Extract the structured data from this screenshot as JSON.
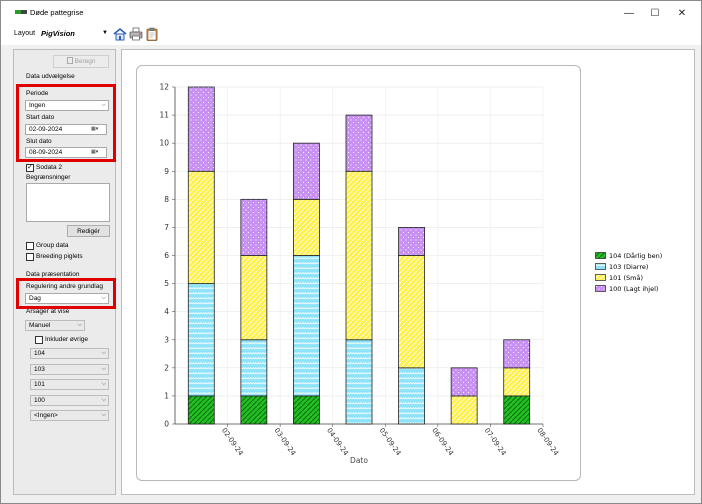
{
  "window": {
    "title": "Døde pattegrise",
    "minimize": "—",
    "maximize": "☐",
    "close": "✕"
  },
  "toolbar": {
    "layout_label": "Layout",
    "layout_value": "PigVision",
    "icons": [
      "house-icon",
      "printer-icon",
      "clipboard-icon"
    ]
  },
  "panel": {
    "beregn_label": "Beregn",
    "data_section": "Data udvælgelse",
    "periode_label": "Periode",
    "periode_value": "Ingen",
    "start_label": "Start dato",
    "start_value": "02-09-2024",
    "slut_label": "Slut dato",
    "slut_value": "08-09-2024",
    "sodata_label": "Sodata 2",
    "sodata_checked": true,
    "begr_label": "Begrænsninger",
    "rediger_label": "Redigér",
    "group_data_label": "Group data",
    "breeding_label": "Breeding piglets",
    "presentation_section": "Data præsentation",
    "regulering_label": "Regulering andre grundlag",
    "regulering_value": "Dag",
    "aarsager_label": "Årsager at vise",
    "aarsager_value": "Manuel",
    "inkluder_label": "Inkluder øvrige",
    "causes": [
      "104",
      "103",
      "101",
      "100",
      "<Ingen>"
    ]
  },
  "legend": [
    "104 (Dårlig ben)",
    "103 (Diarre)",
    "101 (Små)",
    "100 (Lagt ihjel)"
  ],
  "colors": {
    "s104": "#22c022",
    "s103": "#8fe3f8",
    "s101": "#fff04a",
    "s100": "#c890f2",
    "highlight": "#e00000"
  },
  "chart_data": {
    "type": "bar",
    "stacked": true,
    "xlabel": "Dato",
    "ylabel": "",
    "ylim": [
      0,
      12
    ],
    "yticks": [
      0,
      1,
      2,
      3,
      4,
      5,
      6,
      7,
      8,
      9,
      10,
      11,
      12
    ],
    "categories": [
      "02-09-24",
      "03-09-24",
      "04-09-24",
      "05-09-24",
      "06-09-24",
      "07-09-24",
      "08-09-24"
    ],
    "grid": true,
    "legend_position": "right",
    "series": [
      {
        "name": "104 (Dårlig ben)",
        "values": [
          1,
          1,
          1,
          0,
          0,
          0,
          1
        ]
      },
      {
        "name": "103 (Diarre)",
        "values": [
          4,
          2,
          5,
          3,
          2,
          0,
          0
        ]
      },
      {
        "name": "101 (Små)",
        "values": [
          4,
          3,
          2,
          6,
          4,
          1,
          1
        ]
      },
      {
        "name": "100 (Lagt ihjel)",
        "values": [
          3,
          2,
          2,
          2,
          1,
          1,
          1
        ]
      }
    ]
  }
}
